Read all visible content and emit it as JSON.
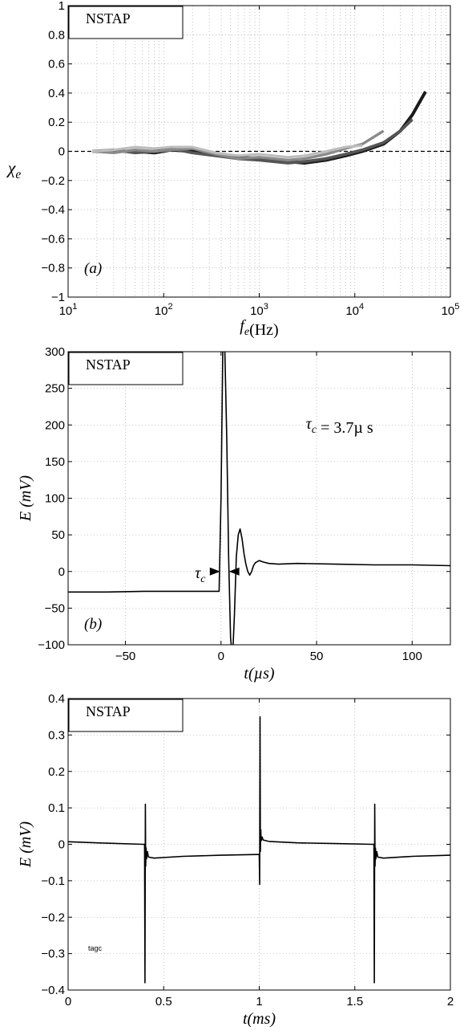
{
  "chart_data": [
    {
      "type": "line",
      "panel_label": "(a)",
      "legend_box": "NSTAP",
      "xlabel": "f_e(Hz)",
      "ylabel": "χ_e",
      "xscale": "log",
      "xlim": [
        10,
        100000
      ],
      "ylim": [
        -1,
        1
      ],
      "xticks": [
        10,
        100,
        1000,
        10000,
        100000
      ],
      "xtick_labels": [
        {
          "b": "10",
          "e": "1"
        },
        {
          "b": "10",
          "e": "2"
        },
        {
          "b": "10",
          "e": "3"
        },
        {
          "b": "10",
          "e": "4"
        },
        {
          "b": "10",
          "e": "5"
        }
      ],
      "yticks": [
        -1,
        -0.8,
        -0.6,
        -0.4,
        -0.2,
        0,
        0.2,
        0.4,
        0.6,
        0.8,
        1
      ],
      "ytick_labels": [
        "−1",
        "−0.8",
        "−0.6",
        "−0.4",
        "−0.2",
        "0",
        "0.2",
        "0.4",
        "0.6",
        "0.8",
        "1"
      ],
      "grid": true,
      "reference_line": {
        "y": 0,
        "style": "dashed"
      },
      "series": [
        {
          "color": "#1a1a1a",
          "x": [
            18,
            30,
            50,
            80,
            120,
            200,
            350,
            600,
            1000,
            2000,
            3000,
            5000,
            8000,
            12000,
            20000,
            30000,
            40000,
            55000
          ],
          "y": [
            0,
            0,
            0,
            -0.01,
            0.01,
            0,
            -0.02,
            -0.04,
            -0.05,
            -0.07,
            -0.08,
            -0.06,
            -0.03,
            0,
            0.05,
            0.14,
            0.25,
            0.41
          ]
        },
        {
          "color": "#555555",
          "x": [
            18,
            30,
            50,
            80,
            120,
            200,
            350,
            600,
            1000,
            2000,
            3000,
            5000,
            8000,
            12000,
            20000,
            30000,
            40000
          ],
          "y": [
            0,
            0.01,
            -0.01,
            0,
            0.02,
            -0.01,
            -0.03,
            -0.05,
            -0.06,
            -0.08,
            -0.07,
            -0.05,
            -0.02,
            0.01,
            0.06,
            0.14,
            0.22
          ]
        },
        {
          "color": "#8a8a8a",
          "x": [
            18,
            30,
            50,
            80,
            120,
            200,
            350,
            600,
            1000,
            2000,
            3000,
            5000,
            8000,
            12000,
            20000
          ],
          "y": [
            0,
            -0.01,
            0.01,
            0,
            0.01,
            0.02,
            -0.02,
            -0.05,
            -0.04,
            -0.06,
            -0.05,
            -0.02,
            0.02,
            0.05,
            0.14
          ]
        },
        {
          "color": "#bdbdbd",
          "x": [
            18,
            30,
            50,
            80,
            120,
            200,
            350,
            600,
            1000,
            2000,
            3000,
            5000,
            8000,
            12000
          ],
          "y": [
            0,
            0.01,
            0.03,
            0.02,
            0.03,
            0.03,
            -0.01,
            -0.03,
            -0.02,
            -0.04,
            -0.03,
            0,
            0.03,
            0.04
          ]
        }
      ]
    },
    {
      "type": "line",
      "panel_label": "(b)",
      "legend_box": "NSTAP",
      "xlabel": "t(µs)",
      "ylabel": "E (mV)",
      "xlim": [
        -80,
        120
      ],
      "ylim": [
        -100,
        300
      ],
      "xticks": [
        -50,
        0,
        50,
        100
      ],
      "xtick_labels": [
        "−50",
        "0",
        "50",
        "100"
      ],
      "yticks": [
        -100,
        -50,
        0,
        50,
        100,
        150,
        200,
        250,
        300
      ],
      "ytick_labels": [
        "−100",
        "−50",
        "0",
        "50",
        "100",
        "150",
        "200",
        "250",
        "300"
      ],
      "grid": true,
      "annotation": "τ_c = 3.7µ s",
      "tau_marker": {
        "label": "τ_c",
        "y": 0,
        "x_start": 0,
        "x_end": 3.7
      },
      "series": [
        {
          "color": "#000000",
          "x": [
            -80,
            -60,
            -40,
            -20,
            -1,
            0,
            1,
            2,
            3,
            4,
            5,
            6,
            7,
            8,
            9,
            10,
            11,
            12,
            13,
            14,
            15,
            16,
            17,
            18,
            20,
            22,
            25,
            30,
            40,
            60,
            80,
            100,
            120
          ],
          "y": [
            -28,
            -28,
            -27,
            -27,
            -27,
            100,
            320,
            300,
            180,
            20,
            -90,
            -120,
            -60,
            20,
            50,
            58,
            45,
            25,
            10,
            0,
            -5,
            0,
            8,
            12,
            15,
            13,
            11,
            10,
            11,
            10,
            9,
            9,
            8
          ]
        }
      ]
    },
    {
      "type": "line",
      "legend_box": "NSTAP",
      "small_label": "tagc",
      "xlabel": "t(ms)",
      "ylabel": "E (mV)",
      "xlim": [
        0,
        2
      ],
      "ylim": [
        -0.4,
        0.4
      ],
      "xticks": [
        0,
        0.5,
        1,
        1.5,
        2
      ],
      "xtick_labels": [
        "0",
        "0.5",
        "1",
        "1.5",
        "2"
      ],
      "yticks": [
        -0.4,
        -0.3,
        -0.2,
        -0.1,
        0,
        0.1,
        0.2,
        0.3,
        0.4
      ],
      "ytick_labels": [
        "−0.4",
        "−0.3",
        "−0.2",
        "−0.1",
        "0",
        "0.1",
        "0.2",
        "0.3",
        "0.4"
      ],
      "grid": true,
      "series": [
        {
          "color": "#000000",
          "x": [
            0,
            0.2,
            0.39,
            0.4,
            0.402,
            0.404,
            0.406,
            0.408,
            0.41,
            0.415,
            0.42,
            0.45,
            0.6,
            0.8,
            0.99,
            1.0,
            1.002,
            1.004,
            1.006,
            1.008,
            1.01,
            1.015,
            1.02,
            1.05,
            1.2,
            1.4,
            1.59,
            1.6,
            1.602,
            1.604,
            1.606,
            1.608,
            1.61,
            1.615,
            1.62,
            1.65,
            1.8,
            2.0
          ],
          "y": [
            0.007,
            0.003,
            0,
            0,
            -0.38,
            0.11,
            -0.06,
            -0.01,
            -0.04,
            -0.02,
            -0.035,
            -0.038,
            -0.033,
            -0.03,
            -0.028,
            -0.028,
            -0.11,
            0.35,
            -0.02,
            0.04,
            0.01,
            0.02,
            0.012,
            0.008,
            0.004,
            0.002,
            0,
            0,
            -0.38,
            0.11,
            -0.06,
            -0.01,
            -0.04,
            -0.02,
            -0.035,
            -0.038,
            -0.033,
            -0.03
          ]
        }
      ]
    }
  ]
}
